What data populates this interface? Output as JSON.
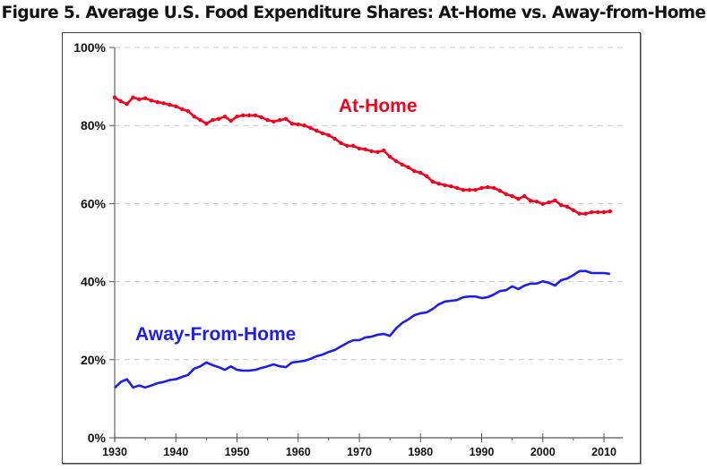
{
  "title": "Figure 5. Average U.S. Food Expenditure Shares: At-Home vs. Away-from-Home",
  "chart_data": {
    "type": "line",
    "title": "Figure 5. Average U.S. Food Expenditure Shares: At-Home vs. Away-from-Home",
    "xlabel": "",
    "ylabel": "",
    "xlim": [
      1930,
      2013
    ],
    "ylim": [
      0,
      100
    ],
    "y_ticks": [
      0,
      20,
      40,
      60,
      80,
      100
    ],
    "y_tick_labels": [
      "0%",
      "20%",
      "40%",
      "60%",
      "80%",
      "100%"
    ],
    "x_ticks": [
      1930,
      1940,
      1950,
      1960,
      1970,
      1980,
      1990,
      2000,
      2010
    ],
    "x_tick_labels": [
      "1930",
      "1940",
      "1950",
      "1960",
      "1970",
      "1980",
      "1990",
      "2000",
      "2010"
    ],
    "x_minor_ticks": [
      1935,
      1945,
      1955,
      1965,
      1975,
      1985,
      1995,
      2005
    ],
    "grid": "horizontal dashed",
    "legend": "none (inline labels)",
    "x": [
      1930,
      1931,
      1932,
      1933,
      1934,
      1935,
      1936,
      1937,
      1938,
      1939,
      1940,
      1941,
      1942,
      1943,
      1944,
      1945,
      1946,
      1947,
      1948,
      1949,
      1950,
      1951,
      1952,
      1953,
      1954,
      1955,
      1956,
      1957,
      1958,
      1959,
      1960,
      1961,
      1962,
      1963,
      1964,
      1965,
      1966,
      1967,
      1968,
      1969,
      1970,
      1971,
      1972,
      1973,
      1974,
      1975,
      1976,
      1977,
      1978,
      1979,
      1980,
      1981,
      1982,
      1983,
      1984,
      1985,
      1986,
      1987,
      1988,
      1989,
      1990,
      1991,
      1992,
      1993,
      1994,
      1995,
      1996,
      1997,
      1998,
      1999,
      2000,
      2001,
      2002,
      2003,
      2004,
      2005,
      2006,
      2007,
      2008,
      2009,
      2010,
      2011
    ],
    "series": [
      {
        "name": "At-Home",
        "color": "#f5001e",
        "markers": true,
        "label_position": "above line, right of 1965",
        "values": [
          87.2,
          86.2,
          85.5,
          87.2,
          86.7,
          87.0,
          86.4,
          86.0,
          85.7,
          85.3,
          84.9,
          84.2,
          83.7,
          82.3,
          81.4,
          80.5,
          81.4,
          81.7,
          82.3,
          81.2,
          82.3,
          82.6,
          82.6,
          82.6,
          82.1,
          81.4,
          81.0,
          81.4,
          81.7,
          80.5,
          80.3,
          80.0,
          79.4,
          78.7,
          78.0,
          77.5,
          76.6,
          75.5,
          74.8,
          74.8,
          74.1,
          73.9,
          73.4,
          73.2,
          73.6,
          72.0,
          70.9,
          70.0,
          69.3,
          68.3,
          67.9,
          67.0,
          65.6,
          65.1,
          64.7,
          64.4,
          64.0,
          63.5,
          63.5,
          63.5,
          64.0,
          64.2,
          64.0,
          63.3,
          62.4,
          61.9,
          61.2,
          61.9,
          60.7,
          60.5,
          59.9,
          60.3,
          60.8,
          59.6,
          59.2,
          58.3,
          57.4,
          57.4,
          57.8,
          57.8,
          57.8,
          58.0
        ]
      },
      {
        "name": "Away-From-Home",
        "color": "#1e1ee6",
        "markers": false,
        "label_position": "above line, 1933-1960",
        "values": [
          12.8,
          14.3,
          15.0,
          12.9,
          13.4,
          12.9,
          13.4,
          14.0,
          14.3,
          14.8,
          15.0,
          15.6,
          16.1,
          17.7,
          18.3,
          19.3,
          18.6,
          18.1,
          17.4,
          18.3,
          17.4,
          17.2,
          17.2,
          17.4,
          17.9,
          18.3,
          18.8,
          18.3,
          18.1,
          19.3,
          19.5,
          19.7,
          20.2,
          20.9,
          21.3,
          22.0,
          22.5,
          23.4,
          24.3,
          25.0,
          25.0,
          25.7,
          25.9,
          26.4,
          26.6,
          26.1,
          28.0,
          29.4,
          30.3,
          31.4,
          31.9,
          32.1,
          33.0,
          34.2,
          34.9,
          35.1,
          35.3,
          36.0,
          36.2,
          36.2,
          35.8,
          36.0,
          36.7,
          37.6,
          37.8,
          38.8,
          38.1,
          39.0,
          39.5,
          39.5,
          40.1,
          39.7,
          39.0,
          40.4,
          40.8,
          41.7,
          42.7,
          42.7,
          42.2,
          42.2,
          42.2,
          42.0
        ]
      }
    ]
  }
}
